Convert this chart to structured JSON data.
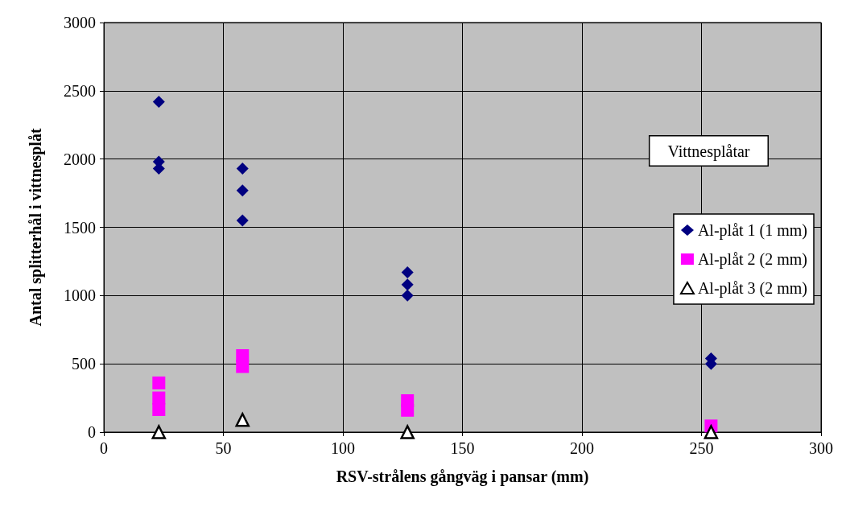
{
  "chart_data": {
    "type": "scatter",
    "xlabel": "RSV-strålens gångväg i pansar (mm)",
    "ylabel": "Antal splitterhål i vittnesplåt",
    "legend_title": "Vittnesplåtar",
    "legend": "right",
    "grid": true,
    "xlim": [
      0,
      300
    ],
    "xticks": [
      0,
      50,
      100,
      150,
      200,
      250,
      300
    ],
    "ylim": [
      0,
      3000
    ],
    "yticks": [
      0,
      500,
      1000,
      1500,
      2000,
      2500,
      3000
    ],
    "series": [
      {
        "name": "Al-plåt 1 (1 mm)",
        "color": "#000080",
        "marker": "diamond",
        "x": [
          23,
          23,
          23,
          58,
          58,
          58,
          127,
          127,
          127,
          254,
          254
        ],
        "values": [
          2420,
          1980,
          1930,
          1930,
          1770,
          1550,
          1170,
          1080,
          1000,
          540,
          500
        ]
      },
      {
        "name": "Al-plåt 2 (2 mm)",
        "color": "#ff00ff",
        "marker": "square",
        "x": [
          23,
          23,
          23,
          58,
          58,
          127,
          127,
          254
        ],
        "values": [
          360,
          250,
          165,
          560,
          480,
          230,
          160,
          45
        ]
      },
      {
        "name": "Al-plåt 3 (2 mm)",
        "color": "#000000",
        "marker": "triangle",
        "x": [
          23,
          58,
          127,
          254
        ],
        "values": [
          0,
          90,
          0,
          0
        ]
      }
    ]
  }
}
